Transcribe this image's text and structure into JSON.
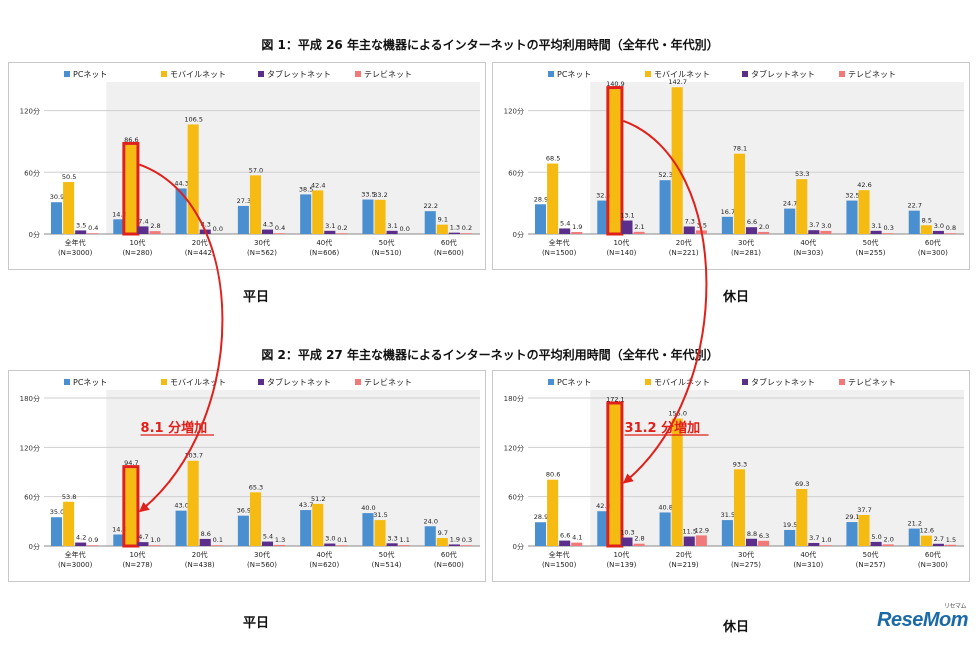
{
  "fig1_title": "図 1：平成 26 年主な機器によるインターネットの平均利用時間（全年代・年代別）",
  "fig2_title": "図 2：平成 27 年主な機器によるインターネットの平均利用時間（全年代・年代別）",
  "colors": {
    "pc": "#4a8fd0",
    "mobile": "#f5bb12",
    "tablet": "#5b2e8c",
    "tv": "#f07a7a",
    "highlight": "#e0201a",
    "increase_text": "#e0201a"
  },
  "logo": {
    "text": "ReseMom",
    "sub": "リセマム"
  },
  "chart_data": [
    {
      "type": "bar",
      "caption": "平日",
      "y_unit": "分",
      "ylim": [
        0,
        140
      ],
      "yticks": [
        0,
        60,
        120
      ],
      "categories": [
        "全年代\n(N=3000)",
        "10代\n(N=280)",
        "20代\n(N=442)",
        "30代\n(N=562)",
        "40代\n(N=606)",
        "50代\n(N=510)",
        "60代\n(N=600)"
      ],
      "series": [
        {
          "name": "PCネット",
          "values": [
            30.9,
            14.3,
            44.3,
            27.3,
            38.5,
            33.5,
            22.2
          ]
        },
        {
          "name": "モバイルネット",
          "values": [
            50.5,
            86.6,
            106.5,
            57.0,
            42.4,
            33.2,
            9.1
          ]
        },
        {
          "name": "タブレットネット",
          "values": [
            3.5,
            7.4,
            4.3,
            4.3,
            3.1,
            3.1,
            1.3
          ]
        },
        {
          "name": "テレビネット",
          "values": [
            0.4,
            2.8,
            0.0,
            0.4,
            0.2,
            0.0,
            0.2
          ]
        }
      ],
      "highlight": {
        "category": 1,
        "series": 1
      },
      "annotation": ""
    },
    {
      "type": "bar",
      "caption": "休日",
      "y_unit": "分",
      "ylim": [
        0,
        140
      ],
      "yticks": [
        0,
        60,
        120
      ],
      "categories": [
        "全年代\n(N=1500)",
        "10代\n(N=140)",
        "20代\n(N=221)",
        "30代\n(N=281)",
        "40代\n(N=303)",
        "50代\n(N=255)",
        "60代\n(N=300)"
      ],
      "series": [
        {
          "name": "PCネット",
          "values": [
            28.9,
            32.5,
            52.3,
            16.7,
            24.7,
            32.5,
            22.7
          ]
        },
        {
          "name": "モバイルネット",
          "values": [
            68.5,
            140.9,
            142.7,
            78.1,
            53.3,
            42.6,
            8.5
          ]
        },
        {
          "name": "タブレットネット",
          "values": [
            5.4,
            13.1,
            7.3,
            6.6,
            3.7,
            3.1,
            3.0
          ]
        },
        {
          "name": "テレビネット",
          "values": [
            1.9,
            2.1,
            3.5,
            2.0,
            3.0,
            0.3,
            0.8
          ]
        }
      ],
      "highlight": {
        "category": 1,
        "series": 1
      },
      "annotation": ""
    },
    {
      "type": "bar",
      "caption": "平日",
      "y_unit": "分",
      "ylim": [
        0,
        180
      ],
      "yticks": [
        0,
        60,
        120,
        180
      ],
      "categories": [
        "全年代\n(N=3000)",
        "10代\n(N=278)",
        "20代\n(N=438)",
        "30代\n(N=560)",
        "40代\n(N=620)",
        "50代\n(N=514)",
        "60代\n(N=600)"
      ],
      "series": [
        {
          "name": "PCネット",
          "values": [
            35.0,
            14.0,
            43.0,
            36.9,
            43.7,
            40.0,
            24.0
          ]
        },
        {
          "name": "モバイルネット",
          "values": [
            53.8,
            94.7,
            103.7,
            65.3,
            51.2,
            31.5,
            9.7
          ]
        },
        {
          "name": "タブレットネット",
          "values": [
            4.2,
            4.7,
            8.6,
            5.4,
            3.0,
            3.3,
            1.9
          ]
        },
        {
          "name": "テレビネット",
          "values": [
            0.9,
            1.0,
            0.1,
            1.3,
            0.1,
            1.1,
            0.3
          ]
        }
      ],
      "highlight": {
        "category": 1,
        "series": 1
      },
      "annotation": "8.1 分増加"
    },
    {
      "type": "bar",
      "caption": "休日",
      "y_unit": "分",
      "ylim": [
        0,
        180
      ],
      "yticks": [
        0,
        60,
        120,
        180
      ],
      "categories": [
        "全年代\n(N=1500)",
        "10代\n(N=139)",
        "20代\n(N=219)",
        "30代\n(N=275)",
        "40代\n(N=310)",
        "50代\n(N=257)",
        "60代\n(N=300)"
      ],
      "series": [
        {
          "name": "PCネット",
          "values": [
            28.9,
            42.3,
            40.8,
            31.5,
            19.5,
            29.1,
            21.2
          ]
        },
        {
          "name": "モバイルネット",
          "values": [
            80.6,
            172.1,
            155.0,
            93.3,
            69.3,
            37.7,
            12.6
          ]
        },
        {
          "name": "タブレットネット",
          "values": [
            6.6,
            10.3,
            11.5,
            8.8,
            3.7,
            5.0,
            2.7
          ]
        },
        {
          "name": "テレビネット",
          "values": [
            4.1,
            2.8,
            12.9,
            6.3,
            1.0,
            2.0,
            1.5
          ]
        }
      ],
      "highlight": {
        "category": 1,
        "series": 1
      },
      "annotation": "31.2 分増加"
    }
  ]
}
